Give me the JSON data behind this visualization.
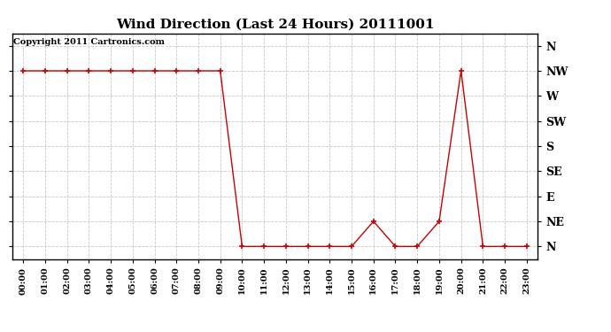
{
  "title": "Wind Direction (Last 24 Hours) 20111001",
  "copyright_text": "Copyright 2011 Cartronics.com",
  "x_labels": [
    "00:00",
    "01:00",
    "02:00",
    "03:00",
    "04:00",
    "05:00",
    "06:00",
    "07:00",
    "08:00",
    "09:00",
    "10:00",
    "11:00",
    "12:00",
    "13:00",
    "14:00",
    "15:00",
    "16:00",
    "17:00",
    "18:00",
    "19:00",
    "20:00",
    "21:00",
    "22:00",
    "23:00"
  ],
  "y_ticks_values": [
    0,
    1,
    2,
    3,
    4,
    5,
    6,
    7,
    8
  ],
  "y_tick_labels": [
    "N",
    "NE",
    "E",
    "SE",
    "S",
    "SW",
    "W",
    "NW",
    "N"
  ],
  "hours": [
    0,
    1,
    2,
    3,
    4,
    5,
    6,
    7,
    8,
    9,
    10,
    11,
    12,
    13,
    14,
    15,
    16,
    17,
    18,
    19,
    20,
    21,
    22,
    23
  ],
  "values": [
    7,
    7,
    7,
    7,
    7,
    7,
    7,
    7,
    7,
    7,
    0,
    0,
    0,
    0,
    0,
    0,
    1,
    0,
    0,
    1,
    7,
    0,
    0,
    0
  ],
  "line_color": "#cc0000",
  "marker_color": "#cc0000",
  "bg_color": "#ffffff",
  "plot_bg_color": "#ffffff",
  "grid_color": "#c8c8c8",
  "title_fontsize": 11,
  "copyright_fontsize": 7
}
